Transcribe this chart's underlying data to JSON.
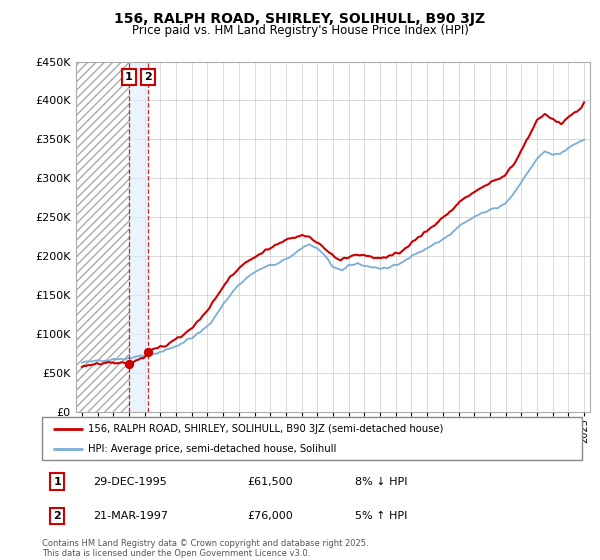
{
  "title": "156, RALPH ROAD, SHIRLEY, SOLIHULL, B90 3JZ",
  "subtitle": "Price paid vs. HM Land Registry's House Price Index (HPI)",
  "legend_line1": "156, RALPH ROAD, SHIRLEY, SOLIHULL, B90 3JZ (semi-detached house)",
  "legend_line2": "HPI: Average price, semi-detached house, Solihull",
  "footnote": "Contains HM Land Registry data © Crown copyright and database right 2025.\nThis data is licensed under the Open Government Licence v3.0.",
  "sale1_date": "29-DEC-1995",
  "sale1_price": "£61,500",
  "sale1_hpi": "8% ↓ HPI",
  "sale2_date": "21-MAR-1997",
  "sale2_price": "£76,000",
  "sale2_hpi": "5% ↑ HPI",
  "sale_color": "#cc0000",
  "hpi_color": "#7aaed6",
  "vline_color": "#cc0000",
  "ylim": [
    0,
    450000
  ],
  "yticks": [
    0,
    50000,
    100000,
    150000,
    200000,
    250000,
    300000,
    350000,
    400000,
    450000
  ],
  "sale1_x": 1995.99,
  "sale2_x": 1997.22,
  "sale1_y": 61500,
  "sale2_y": 76000,
  "xlim_left": 1992.6,
  "xlim_right": 2025.4
}
